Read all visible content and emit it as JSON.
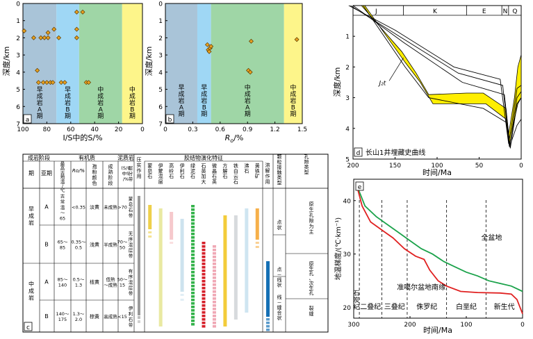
{
  "panel_a": {
    "label": "a",
    "ylabel": "深度/km",
    "xlabel": "I/S中的S/%",
    "xticks": [
      "100",
      "80",
      "60",
      "40",
      "20",
      "0"
    ],
    "yticks": [
      "0",
      "1",
      "2",
      "3",
      "4",
      "5",
      "6",
      "7"
    ],
    "zones": [
      {
        "key": "ea",
        "lines": [
          "早",
          "成",
          "岩",
          "A",
          "期"
        ],
        "color": "#a9c4d8"
      },
      {
        "key": "eb",
        "lines": [
          "早",
          "成",
          "岩",
          "B",
          "期"
        ],
        "color": "#9fd7f5"
      },
      {
        "key": "ma",
        "lines": [
          "中",
          "成",
          "岩",
          "A",
          "期"
        ],
        "color": "#9fd6a6"
      },
      {
        "key": "mb",
        "lines": [
          "中",
          "成",
          "岩",
          "B",
          "期"
        ],
        "color": "#fdf58a"
      }
    ]
  },
  "panel_b": {
    "label": "b",
    "ylabel": "深度/km",
    "xlabel": "Ro/%",
    "xlabel_main": "R",
    "xlabel_sub": "o",
    "xlabel_unit": "/%",
    "xticks": [
      "0",
      "0.3",
      "0.6",
      "0.9",
      "1.2",
      "1.5"
    ],
    "yticks": [
      "0",
      "1",
      "2",
      "3",
      "4",
      "5",
      "6",
      "7"
    ],
    "zones": [
      {
        "key": "ea",
        "lines": [
          "早",
          "成",
          "岩",
          "A",
          "期"
        ],
        "color": "#a9c4d8"
      },
      {
        "key": "eb",
        "lines": [
          "早",
          "成",
          "岩",
          "B",
          "期"
        ],
        "color": "#9fd7f5"
      },
      {
        "key": "ma",
        "lines": [
          "中",
          "成",
          "岩",
          "A",
          "期"
        ],
        "color": "#9fd6a6"
      },
      {
        "key": "mb",
        "lines": [
          "中",
          "成",
          "岩",
          "B",
          "期"
        ],
        "color": "#fdf58a"
      }
    ]
  },
  "panel_c": {
    "label": "c",
    "header": {
      "stage_group": "成岩阶段",
      "stage": "期",
      "substage": "亚期",
      "max_temp": [
        "最",
        "高",
        "古",
        "地",
        "温",
        "/",
        "℃"
      ],
      "organic_group": "有机质",
      "ro": "Ro/%",
      "spore": [
        "孢",
        "粉",
        "颜",
        "色"
      ],
      "maturity": [
        "成",
        "熟",
        "阶",
        "段"
      ],
      "mudstone_group": "泥质岩",
      "is_pct": [
        "(S/I)",
        "中S",
        "/%"
      ],
      "mixed_zone": [
        "层",
        "分",
        "带"
      ],
      "compaction": [
        "压",
        "实",
        "作",
        "用"
      ],
      "cement_group": "胶结物演化特征",
      "dissolution": [
        "溶",
        "解",
        "作",
        "用"
      ],
      "grain_contact": [
        "颗",
        "粒",
        "接",
        "触",
        "类",
        "型"
      ],
      "pore_type": [
        "孔",
        "隙",
        "类",
        "型"
      ]
    },
    "minerals": [
      {
        "name": [
          "蒙",
          "皂",
          "石"
        ]
      },
      {
        "name": [
          "伊",
          "蒙",
          "混",
          "层"
        ]
      },
      {
        "name": [
          "高",
          "岭",
          "石"
        ]
      },
      {
        "name": [
          "伊",
          "利",
          "石"
        ]
      },
      {
        "name": [
          "绿",
          "泥",
          "石"
        ]
      },
      {
        "name": [
          "石",
          "英",
          "加",
          "大"
        ]
      },
      {
        "name": [
          "微",
          "晶",
          "石",
          "英"
        ]
      },
      {
        "name": [
          "方",
          "解",
          "石"
        ]
      },
      {
        "name": [
          "铁",
          "白",
          "云",
          "石"
        ]
      },
      {
        "name": [
          "沸",
          "石"
        ]
      },
      {
        "name": [
          "黄",
          "铁",
          "矿"
        ]
      }
    ],
    "rows": [
      {
        "stage": [
          "早",
          "成",
          "岩"
        ],
        "sub": "A",
        "temp": [
          "古",
          "常",
          "温",
          "～",
          "65"
        ],
        "ro": "<0.35",
        "spore": "淡黄",
        "maturity": "未成熟",
        "is": ">70",
        "zone": [
          "蒙",
          "皂",
          "石",
          "带"
        ]
      },
      {
        "stage": [],
        "sub": "B",
        "temp": [
          "65～",
          "85"
        ],
        "ro": [
          "0.35～",
          "0.5"
        ],
        "spore": "浅黄",
        "maturity": "半成熟",
        "is": [
          "70～",
          "50"
        ],
        "zone": [
          "无",
          "序",
          "混",
          "层",
          "带"
        ]
      },
      {
        "stage": [
          "中",
          "成",
          "岩"
        ],
        "sub": "A",
        "temp": [
          "85～",
          "140"
        ],
        "ro": [
          "0.5～",
          "1.3"
        ],
        "spore": "桔黄",
        "maturity": [
          "低熟",
          "～成熟"
        ],
        "is": [
          "50～",
          "15"
        ],
        "zone": [
          "有",
          "序",
          "混",
          "层",
          "带"
        ]
      },
      {
        "stage": [],
        "sub": "B",
        "temp": [
          "140～",
          "175"
        ],
        "ro": [
          "1.3～",
          "2.0"
        ],
        "spore": "棕黄",
        "maturity": "高成熟",
        "is": "<15",
        "zone": [
          "伊",
          "利",
          "石",
          "带"
        ]
      }
    ],
    "grain_contact_vals": [
      [
        "点",
        "状"
      ],
      [
        "点",
        "－",
        "线",
        "状"
      ],
      [
        "线",
        "－",
        "缝",
        "合",
        "状"
      ]
    ],
    "pore_vals": [
      [
        "原",
        "生",
        "孔",
        "隙",
        "为",
        "主"
      ],
      [
        "原",
        "生",
        "孔",
        "、",
        "次",
        "生",
        "孔"
      ],
      [
        "裂",
        "缝"
      ]
    ]
  },
  "chart_data": [
    {
      "type": "scatter",
      "panel": "a",
      "xlabel": "I/S中的S/%",
      "ylabel": "深度/km",
      "xlim": [
        100,
        0
      ],
      "ylim": [
        7,
        0
      ],
      "zone_bounds": [
        100,
        72,
        53,
        17,
        0
      ],
      "points": [
        [
          99,
          1.6
        ],
        [
          91,
          2.0
        ],
        [
          88,
          3.9
        ],
        [
          87,
          4.6
        ],
        [
          85,
          2.0
        ],
        [
          83,
          4.6
        ],
        [
          82,
          2.0
        ],
        [
          80,
          4.6
        ],
        [
          79,
          1.7
        ],
        [
          79,
          2.0
        ],
        [
          77,
          4.6
        ],
        [
          75,
          4.6
        ],
        [
          74,
          1.5
        ],
        [
          70,
          2.0
        ],
        [
          68,
          4.6
        ],
        [
          65,
          4.6
        ],
        [
          55,
          0.5
        ],
        [
          55,
          1.5
        ],
        [
          55,
          2.0
        ],
        [
          50,
          0.5
        ],
        [
          47,
          4.6
        ],
        [
          45,
          4.6
        ]
      ]
    },
    {
      "type": "scatter",
      "panel": "b",
      "xlabel": "Ro/%",
      "ylabel": "深度/km",
      "xlim": [
        0,
        1.5
      ],
      "ylim": [
        7,
        0
      ],
      "zone_bounds": [
        0,
        0.35,
        0.5,
        1.3,
        1.5
      ],
      "points": [
        [
          0.46,
          2.4
        ],
        [
          0.47,
          2.7
        ],
        [
          0.48,
          2.8
        ],
        [
          0.49,
          2.6
        ],
        [
          0.5,
          2.5
        ],
        [
          0.91,
          3.9
        ],
        [
          0.93,
          4.0
        ],
        [
          0.94,
          2.2
        ],
        [
          1.44,
          2.1
        ]
      ]
    },
    {
      "type": "area",
      "panel": "d",
      "title": "长山1井埋藏史曲线",
      "xlabel": "时间/Ma",
      "ylabel": "深度/km",
      "xlim": [
        200,
        0
      ],
      "ylim": [
        5,
        0
      ],
      "xticks": [
        200,
        150,
        100,
        50,
        0
      ],
      "yticks": [
        1,
        2,
        3,
        4,
        5
      ],
      "period_labels": [
        "J",
        "K",
        "E",
        "N",
        "Q"
      ],
      "period_bounds": [
        205,
        140,
        65,
        23,
        15,
        0
      ],
      "layer_label": "J₂t",
      "burial_lines": [
        {
          "name": "line1",
          "points": [
            [
              205,
              0
            ],
            [
              150,
              0.8
            ],
            [
              80,
              2.0
            ],
            [
              25,
              2.4
            ],
            [
              15,
              4.5
            ],
            [
              12,
              4.0
            ],
            [
              5,
              2.7
            ],
            [
              0,
              2.6
            ]
          ]
        },
        {
          "name": "line2",
          "points": [
            [
              203,
              0
            ],
            [
              145,
              1.0
            ],
            [
              75,
              2.2
            ],
            [
              22,
              2.6
            ],
            [
              14,
              4.6
            ],
            [
              5,
              3.0
            ],
            [
              0,
              2.8
            ]
          ]
        },
        {
          "name": "line3",
          "points": [
            [
              200,
              0
            ],
            [
              140,
              1.2
            ],
            [
              70,
              2.5
            ],
            [
              20,
              2.9
            ],
            [
              13,
              4.65
            ],
            [
              5,
              3.2
            ],
            [
              0,
              3.0
            ]
          ]
        },
        {
          "name": "line6",
          "points": [
            [
              188,
              0
            ],
            [
              138,
              2.0
            ],
            [
              110,
              3.0
            ],
            [
              45,
              3.35
            ],
            [
              18,
              3.8
            ],
            [
              14,
              4.6
            ],
            [
              5,
              3.9
            ],
            [
              0,
              3.7
            ]
          ]
        }
      ],
      "yellow_top": [
        [
          190,
          0
        ],
        [
          142,
          1.5
        ],
        [
          125,
          2.2
        ],
        [
          110,
          2.9
        ],
        [
          65,
          2.85
        ],
        [
          45,
          2.85
        ],
        [
          18,
          3.35
        ],
        [
          15,
          4.2
        ],
        [
          8,
          3.0
        ],
        [
          4,
          2.0
        ],
        [
          0,
          1.6
        ]
      ],
      "yellow_bottom": [
        [
          186,
          0
        ],
        [
          138,
          1.85
        ],
        [
          120,
          2.5
        ],
        [
          105,
          3.2
        ],
        [
          60,
          3.2
        ],
        [
          42,
          3.2
        ],
        [
          18,
          3.7
        ],
        [
          14,
          4.55
        ],
        [
          8,
          3.7
        ],
        [
          4,
          3.2
        ],
        [
          0,
          3.0
        ]
      ]
    },
    {
      "type": "line",
      "panel": "e",
      "xlabel": "时间/Ma",
      "ylabel": "地温梯度/(℃·km⁻¹)",
      "xlim": [
        300,
        0
      ],
      "ylim": [
        18,
        44
      ],
      "xticks": [
        300,
        200,
        100,
        0
      ],
      "yticks": [
        20,
        30,
        40
      ],
      "period_bounds": [
        290,
        250,
        205,
        135,
        65
      ],
      "period_labels": [
        "二叠纪",
        "三叠纪",
        "侏罗纪",
        "白垩纪",
        "新生代"
      ],
      "period_label_left": [
        "石",
        "炭",
        "纪"
      ],
      "series": [
        {
          "name": "全盆地",
          "color": "#1aa24a",
          "points": [
            [
              295,
              43
            ],
            [
              280,
              39
            ],
            [
              260,
              37
            ],
            [
              240,
              35.5
            ],
            [
              220,
              34
            ],
            [
              200,
              32.5
            ],
            [
              180,
              31
            ],
            [
              160,
              30
            ],
            [
              140,
              28.6
            ],
            [
              120,
              27.6
            ],
            [
              100,
              26.6
            ],
            [
              80,
              25.9
            ],
            [
              60,
              25
            ],
            [
              40,
              24.5
            ],
            [
              20,
              24
            ],
            [
              0,
              23
            ]
          ]
        },
        {
          "name": "准噶尔盆地南缘",
          "color": "#e02020",
          "points": [
            [
              295,
              43
            ],
            [
              285,
              39
            ],
            [
              270,
              36
            ],
            [
              250,
              34.5
            ],
            [
              230,
              33
            ],
            [
              210,
              31
            ],
            [
              190,
              29.6
            ],
            [
              175,
              29
            ],
            [
              165,
              27
            ],
            [
              150,
              25
            ],
            [
              135,
              24
            ],
            [
              110,
              23
            ],
            [
              80,
              22.8
            ],
            [
              40,
              22.7
            ],
            [
              20,
              22.5
            ],
            [
              10,
              21.5
            ],
            [
              0,
              18.8
            ]
          ]
        }
      ]
    }
  ]
}
